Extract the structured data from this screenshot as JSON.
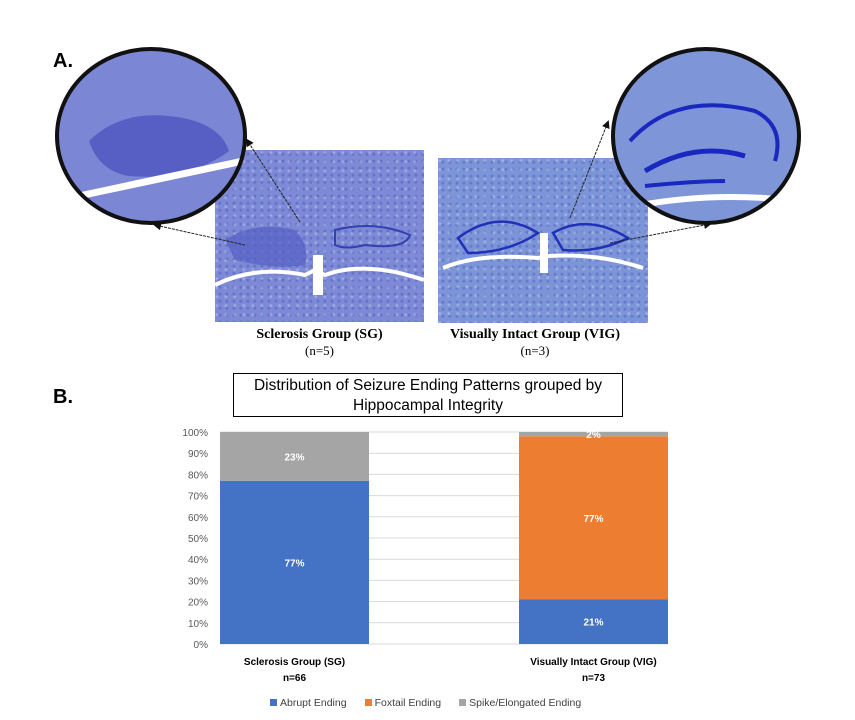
{
  "panel_a_label": "A.",
  "panel_b_label": "B.",
  "images": [
    {
      "title": "Sclerosis Group (SG)",
      "n": "(n=5)"
    },
    {
      "title": "Visually Intact Group (VIG)",
      "n": "(n=3)"
    }
  ],
  "icons": {
    "left_zoom": "magnified-hippocampus-sclerosis",
    "right_zoom": "magnified-hippocampus-intact"
  },
  "chart_data": {
    "type": "bar",
    "stacked": true,
    "title": "Distribution of Seizure Ending Patterns grouped by Hippocampal Integrity",
    "title_lines": [
      "Distribution of Seizure Ending Patterns grouped by",
      "Hippocampal Integrity"
    ],
    "categories": [
      "Sclerosis Group (SG)",
      "Visually Intact Group (VIG)"
    ],
    "category_n": [
      "n=66",
      "n=73"
    ],
    "series": [
      {
        "name": "Abrupt Ending",
        "values": [
          77,
          21
        ],
        "labels": [
          "77%",
          "21%"
        ],
        "color": "#4472c4"
      },
      {
        "name": "Foxtail Ending",
        "values": [
          0,
          77
        ],
        "labels": [
          "",
          "77%"
        ],
        "color": "#ed7d31"
      },
      {
        "name": "Spike/Elongated Ending",
        "values": [
          23,
          2
        ],
        "labels": [
          "23%",
          "2%"
        ],
        "color": "#a5a5a5"
      }
    ],
    "yticks": [
      "0%",
      "10%",
      "20%",
      "30%",
      "40%",
      "50%",
      "60%",
      "70%",
      "80%",
      "90%",
      "100%"
    ],
    "ylim": [
      0,
      100
    ],
    "xlabel": "",
    "ylabel": "",
    "grid": true,
    "legend": "bottom"
  }
}
